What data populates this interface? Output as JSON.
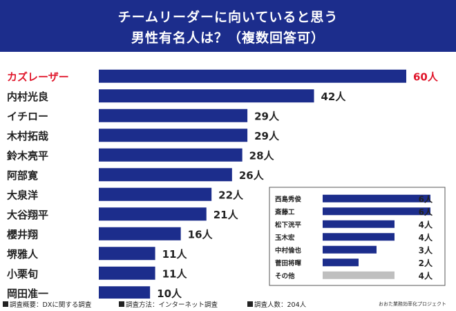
{
  "header": {
    "title_line1": "チームリーダーに向いていると思う",
    "title_line2": "男性有名人は？（複数回答可）"
  },
  "colors": {
    "bar": "#1c2d8c",
    "highlight": "#e0162b",
    "other": "#bfbfbf",
    "text": "#222222"
  },
  "unit": "人",
  "chart_data": [
    {
      "type": "bar",
      "orientation": "horizontal",
      "categories": [
        "カズレーザー",
        "内村光良",
        "イチロー",
        "木村拓哉",
        "鈴木亮平",
        "阿部寛",
        "大泉洋",
        "大谷翔平",
        "櫻井翔",
        "堺雅人",
        "小栗旬",
        "岡田准一"
      ],
      "values": [
        60,
        42,
        29,
        29,
        28,
        26,
        22,
        21,
        16,
        11,
        11,
        10
      ],
      "value_labels": [
        "60人",
        "42人",
        "29人",
        "29人",
        "28人",
        "26人",
        "22人",
        "21人",
        "16人",
        "11人",
        "11人",
        "10人"
      ],
      "highlight_index": 0,
      "xlim": [
        0,
        60
      ]
    },
    {
      "type": "bar",
      "orientation": "horizontal",
      "categories": [
        "西島秀俊",
        "斎藤工",
        "松下洸平",
        "玉木宏",
        "中村倫也",
        "菅田将暉",
        "その他"
      ],
      "values": [
        6,
        6,
        4,
        4,
        3,
        2,
        4
      ],
      "value_labels": [
        "6人",
        "6人",
        "4人",
        "4人",
        "3人",
        "2人",
        "4人"
      ],
      "gray_index": 6,
      "xlim": [
        0,
        6
      ]
    }
  ],
  "footer": {
    "item1": "調査概要：DXに関する調査",
    "item2": "調査方法：インターネット調査",
    "item3": "調査人数：204人",
    "credit": "おおた業務効率化プロジェクト"
  }
}
